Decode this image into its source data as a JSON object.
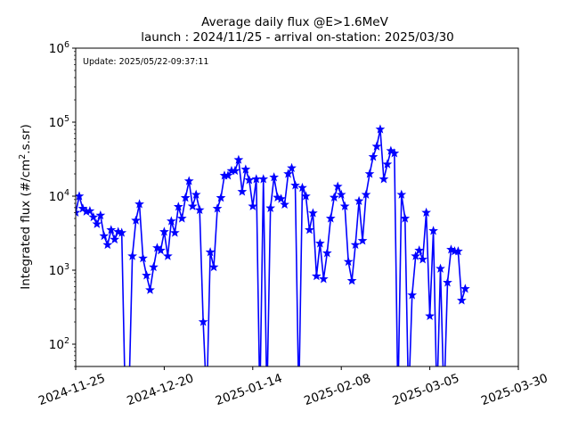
{
  "chart_data": {
    "type": "line",
    "title_line1": "Average daily flux @E>1.6MeV",
    "title_line2": "launch : 2024/11/25 - arrival on-station: 2025/03/30",
    "annotation": "Update: 2025/05/22-09:37:11",
    "xlabel": "",
    "ylabel_prefix": "Integrated flux (#/cm",
    "ylabel_sup": "2",
    "ylabel_suffix": ".s.sr)",
    "y_scale": "log",
    "ylim": [
      50,
      1000000
    ],
    "xlim": [
      "2024-11-25",
      "2025-03-30"
    ],
    "x_ticks": [
      "2024-11-25",
      "2024-12-20",
      "2025-01-14",
      "2025-02-08",
      "2025-03-05",
      "2025-03-30"
    ],
    "y_tick_base": "10",
    "y_ticks": [
      {
        "value": 100,
        "exp": "2"
      },
      {
        "value": 1000,
        "exp": "3"
      },
      {
        "value": 10000,
        "exp": "4"
      },
      {
        "value": 100000,
        "exp": "5"
      },
      {
        "value": 1000000,
        "exp": "6"
      }
    ],
    "grid": false,
    "series": [
      {
        "color": "#0000ff",
        "marker": "star",
        "points": [
          [
            "2024-11-25",
            6000
          ],
          [
            "2024-11-26",
            10000
          ],
          [
            "2024-11-27",
            6800
          ],
          [
            "2024-11-28",
            6200
          ],
          [
            "2024-11-29",
            6300
          ],
          [
            "2024-11-30",
            5200
          ],
          [
            "2024-12-01",
            4200
          ],
          [
            "2024-12-02",
            5500
          ],
          [
            "2024-12-03",
            2900
          ],
          [
            "2024-12-04",
            2200
          ],
          [
            "2024-12-05",
            3500
          ],
          [
            "2024-12-06",
            2600
          ],
          [
            "2024-12-07",
            3300
          ],
          [
            "2024-12-08",
            3200
          ],
          [
            "2024-12-09",
            10
          ],
          [
            "2024-12-10",
            10
          ],
          [
            "2024-12-11",
            1550
          ],
          [
            "2024-12-12",
            4700
          ],
          [
            "2024-12-13",
            7800
          ],
          [
            "2024-12-14",
            1450
          ],
          [
            "2024-12-15",
            850
          ],
          [
            "2024-12-16",
            540
          ],
          [
            "2024-12-17",
            1100
          ],
          [
            "2024-12-18",
            2000
          ],
          [
            "2024-12-19",
            1850
          ],
          [
            "2024-12-20",
            3300
          ],
          [
            "2024-12-21",
            1550
          ],
          [
            "2024-12-22",
            4600
          ],
          [
            "2024-12-23",
            3200
          ],
          [
            "2024-12-24",
            7200
          ],
          [
            "2024-12-25",
            5000
          ],
          [
            "2024-12-26",
            9500
          ],
          [
            "2024-12-27",
            16000
          ],
          [
            "2024-12-28",
            7300
          ],
          [
            "2024-12-29",
            10500
          ],
          [
            "2024-12-30",
            6500
          ],
          [
            "2024-12-31",
            200
          ],
          [
            "2025-01-01",
            10
          ],
          [
            "2025-01-02",
            1750
          ],
          [
            "2025-01-03",
            1100
          ],
          [
            "2025-01-04",
            6800
          ],
          [
            "2025-01-05",
            9500
          ],
          [
            "2025-01-06",
            19000
          ],
          [
            "2025-01-07",
            19000
          ],
          [
            "2025-01-08",
            22000
          ],
          [
            "2025-01-09",
            22000
          ],
          [
            "2025-01-10",
            31000
          ],
          [
            "2025-01-11",
            11500
          ],
          [
            "2025-01-12",
            23000
          ],
          [
            "2025-01-13",
            16500
          ],
          [
            "2025-01-14",
            7300
          ],
          [
            "2025-01-15",
            17000
          ],
          [
            "2025-01-16",
            10
          ],
          [
            "2025-01-17",
            17000
          ],
          [
            "2025-01-18",
            10
          ],
          [
            "2025-01-19",
            6900
          ],
          [
            "2025-01-20",
            18000
          ],
          [
            "2025-01-21",
            9600
          ],
          [
            "2025-01-22",
            9200
          ],
          [
            "2025-01-23",
            7700
          ],
          [
            "2025-01-24",
            20000
          ],
          [
            "2025-01-25",
            24000
          ],
          [
            "2025-01-26",
            14000
          ],
          [
            "2025-01-27",
            10
          ],
          [
            "2025-01-28",
            13000
          ],
          [
            "2025-01-29",
            10000
          ],
          [
            "2025-01-30",
            3500
          ],
          [
            "2025-01-31",
            5900
          ],
          [
            "2025-02-01",
            830
          ],
          [
            "2025-02-02",
            2300
          ],
          [
            "2025-02-03",
            760
          ],
          [
            "2025-02-04",
            1700
          ],
          [
            "2025-02-05",
            5000
          ],
          [
            "2025-02-06",
            9600
          ],
          [
            "2025-02-07",
            13500
          ],
          [
            "2025-02-08",
            10500
          ],
          [
            "2025-02-09",
            7300
          ],
          [
            "2025-02-10",
            1300
          ],
          [
            "2025-02-11",
            720
          ],
          [
            "2025-02-12",
            2200
          ],
          [
            "2025-02-13",
            8600
          ],
          [
            "2025-02-14",
            2500
          ],
          [
            "2025-02-15",
            10500
          ],
          [
            "2025-02-16",
            20000
          ],
          [
            "2025-02-17",
            34000
          ],
          [
            "2025-02-18",
            47000
          ],
          [
            "2025-02-19",
            80000
          ],
          [
            "2025-02-20",
            17000
          ],
          [
            "2025-02-21",
            27000
          ],
          [
            "2025-02-22",
            41000
          ],
          [
            "2025-02-23",
            38000
          ],
          [
            "2025-02-24",
            10
          ],
          [
            "2025-02-25",
            10500
          ],
          [
            "2025-02-26",
            5000
          ],
          [
            "2025-02-27",
            10
          ],
          [
            "2025-02-28",
            460
          ],
          [
            "2025-03-01",
            1550
          ],
          [
            "2025-03-02",
            1850
          ],
          [
            "2025-03-03",
            1400
          ],
          [
            "2025-03-04",
            6000
          ],
          [
            "2025-03-05",
            240
          ],
          [
            "2025-03-06",
            3400
          ],
          [
            "2025-03-07",
            10
          ],
          [
            "2025-03-08",
            1050
          ],
          [
            "2025-03-09",
            10
          ],
          [
            "2025-03-10",
            680
          ],
          [
            "2025-03-11",
            1900
          ],
          [
            "2025-03-12",
            1800
          ],
          [
            "2025-03-13",
            1800
          ],
          [
            "2025-03-14",
            390
          ],
          [
            "2025-03-15",
            560
          ]
        ]
      }
    ]
  }
}
